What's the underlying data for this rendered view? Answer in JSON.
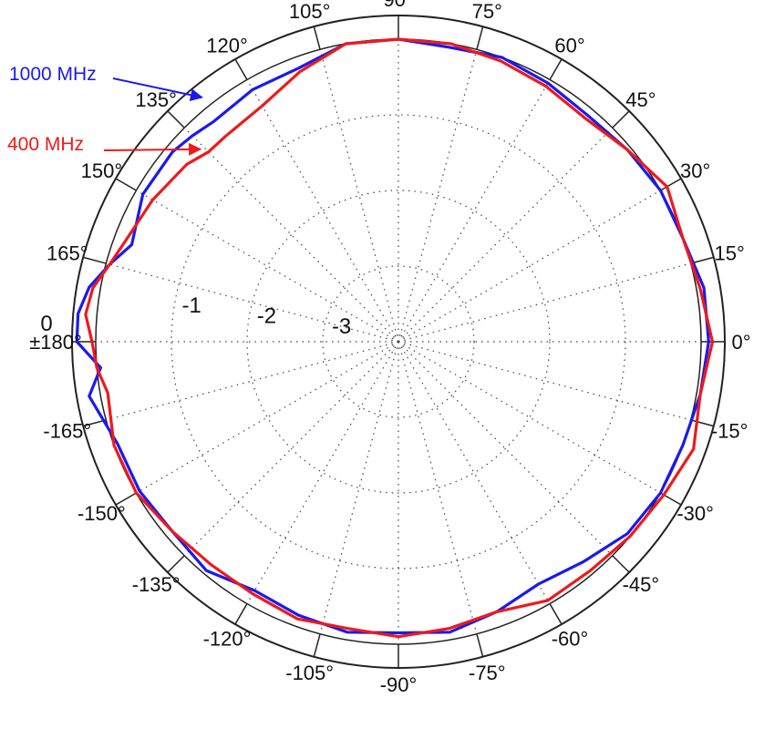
{
  "chart_data": {
    "type": "polar-line",
    "angle_unit": "degrees",
    "theta_ticks": [
      {
        "angle": 90,
        "label": "90°"
      },
      {
        "angle": 75,
        "label": "75°"
      },
      {
        "angle": 60,
        "label": "60°"
      },
      {
        "angle": 45,
        "label": "45°"
      },
      {
        "angle": 30,
        "label": "30°"
      },
      {
        "angle": 15,
        "label": "15°"
      },
      {
        "angle": 0,
        "label": "0°"
      },
      {
        "angle": -15,
        "label": "-15°"
      },
      {
        "angle": -30,
        "label": "-30°"
      },
      {
        "angle": -45,
        "label": "-45°"
      },
      {
        "angle": -60,
        "label": "-60°"
      },
      {
        "angle": -75,
        "label": "-75°"
      },
      {
        "angle": -90,
        "label": "-90°"
      },
      {
        "angle": -105,
        "label": "-105°"
      },
      {
        "angle": -120,
        "label": "-120°"
      },
      {
        "angle": -135,
        "label": "-135°"
      },
      {
        "angle": -150,
        "label": "-150°"
      },
      {
        "angle": -165,
        "label": "-165°"
      },
      {
        "angle": 180,
        "label": "±180°"
      },
      {
        "angle": 165,
        "label": "165°"
      },
      {
        "angle": 150,
        "label": "150°"
      },
      {
        "angle": 135,
        "label": "135°"
      },
      {
        "angle": 120,
        "label": "120°"
      },
      {
        "angle": 105,
        "label": "105°"
      }
    ],
    "radial_axis": {
      "range": [
        -4,
        0.5
      ],
      "grid_rings": [
        -3,
        -2,
        -1,
        0
      ],
      "tick_labels": [
        {
          "value": -1,
          "label": "-1"
        },
        {
          "value": -2,
          "label": "-2"
        },
        {
          "value": -3,
          "label": "-3"
        },
        {
          "value": 0,
          "label": "0"
        }
      ]
    },
    "grid": true,
    "series": [
      {
        "name": "1000 MHz",
        "color": "#1a1aee",
        "points": [
          [
            0,
            0.1
          ],
          [
            10,
            0.1
          ],
          [
            20,
            0.0
          ],
          [
            30,
            0.0
          ],
          [
            40,
            -0.05
          ],
          [
            50,
            -0.1
          ],
          [
            60,
            -0.05
          ],
          [
            70,
            0.0
          ],
          [
            80,
            -0.05
          ],
          [
            90,
            0.0
          ],
          [
            100,
            0.0
          ],
          [
            110,
            -0.15
          ],
          [
            120,
            -0.15
          ],
          [
            130,
            -0.2
          ],
          [
            135,
            -0.15
          ],
          [
            140,
            -0.1
          ],
          [
            150,
            -0.1
          ],
          [
            160,
            -0.25
          ],
          [
            165,
            -0.05
          ],
          [
            170,
            0.15
          ],
          [
            175,
            0.25
          ],
          [
            180,
            0.25
          ],
          [
            185,
            -0.05
          ],
          [
            190,
            0.15
          ],
          [
            200,
            -0.05
          ],
          [
            210,
            -0.05
          ],
          [
            220,
            -0.1
          ],
          [
            230,
            -0.05
          ],
          [
            240,
            -0.2
          ],
          [
            250,
            -0.15
          ],
          [
            260,
            -0.1
          ],
          [
            270,
            -0.15
          ],
          [
            280,
            -0.1
          ],
          [
            290,
            -0.2
          ],
          [
            300,
            -0.3
          ],
          [
            310,
            -0.2
          ],
          [
            320,
            -0.05
          ],
          [
            330,
            0.0
          ],
          [
            340,
            0.0
          ],
          [
            350,
            0.05
          ],
          [
            360,
            0.1
          ]
        ]
      },
      {
        "name": "400 MHz",
        "color": "#ee1a1a",
        "points": [
          [
            0,
            0.15
          ],
          [
            10,
            0.05
          ],
          [
            20,
            0.0
          ],
          [
            30,
            0.1
          ],
          [
            40,
            -0.05
          ],
          [
            50,
            -0.15
          ],
          [
            60,
            -0.1
          ],
          [
            70,
            -0.05
          ],
          [
            80,
            0.0
          ],
          [
            90,
            0.0
          ],
          [
            100,
            0.0
          ],
          [
            110,
            -0.2
          ],
          [
            120,
            -0.4
          ],
          [
            130,
            -0.45
          ],
          [
            135,
            -0.45
          ],
          [
            140,
            -0.35
          ],
          [
            150,
            -0.25
          ],
          [
            160,
            -0.15
          ],
          [
            165,
            -0.05
          ],
          [
            170,
            0.1
          ],
          [
            175,
            0.15
          ],
          [
            180,
            0.05
          ],
          [
            185,
            0.0
          ],
          [
            190,
            -0.1
          ],
          [
            200,
            0.0
          ],
          [
            210,
            0.0
          ],
          [
            220,
            -0.1
          ],
          [
            230,
            -0.15
          ],
          [
            240,
            -0.15
          ],
          [
            250,
            -0.1
          ],
          [
            260,
            -0.15
          ],
          [
            270,
            -0.1
          ],
          [
            280,
            -0.15
          ],
          [
            290,
            -0.2
          ],
          [
            300,
            -0.05
          ],
          [
            310,
            -0.05
          ],
          [
            320,
            0.0
          ],
          [
            330,
            0.05
          ],
          [
            340,
            0.15
          ],
          [
            350,
            0.05
          ],
          [
            360,
            0.15
          ]
        ]
      }
    ],
    "annotations": [
      {
        "text": "1000 MHz",
        "color": "#1a1aee",
        "points_to": {
          "angle": 128,
          "r": 0.1
        }
      },
      {
        "text": "400 MHz",
        "color": "#ee1a1a",
        "points_to": {
          "angle": 135,
          "r": -0.4
        }
      }
    ]
  }
}
